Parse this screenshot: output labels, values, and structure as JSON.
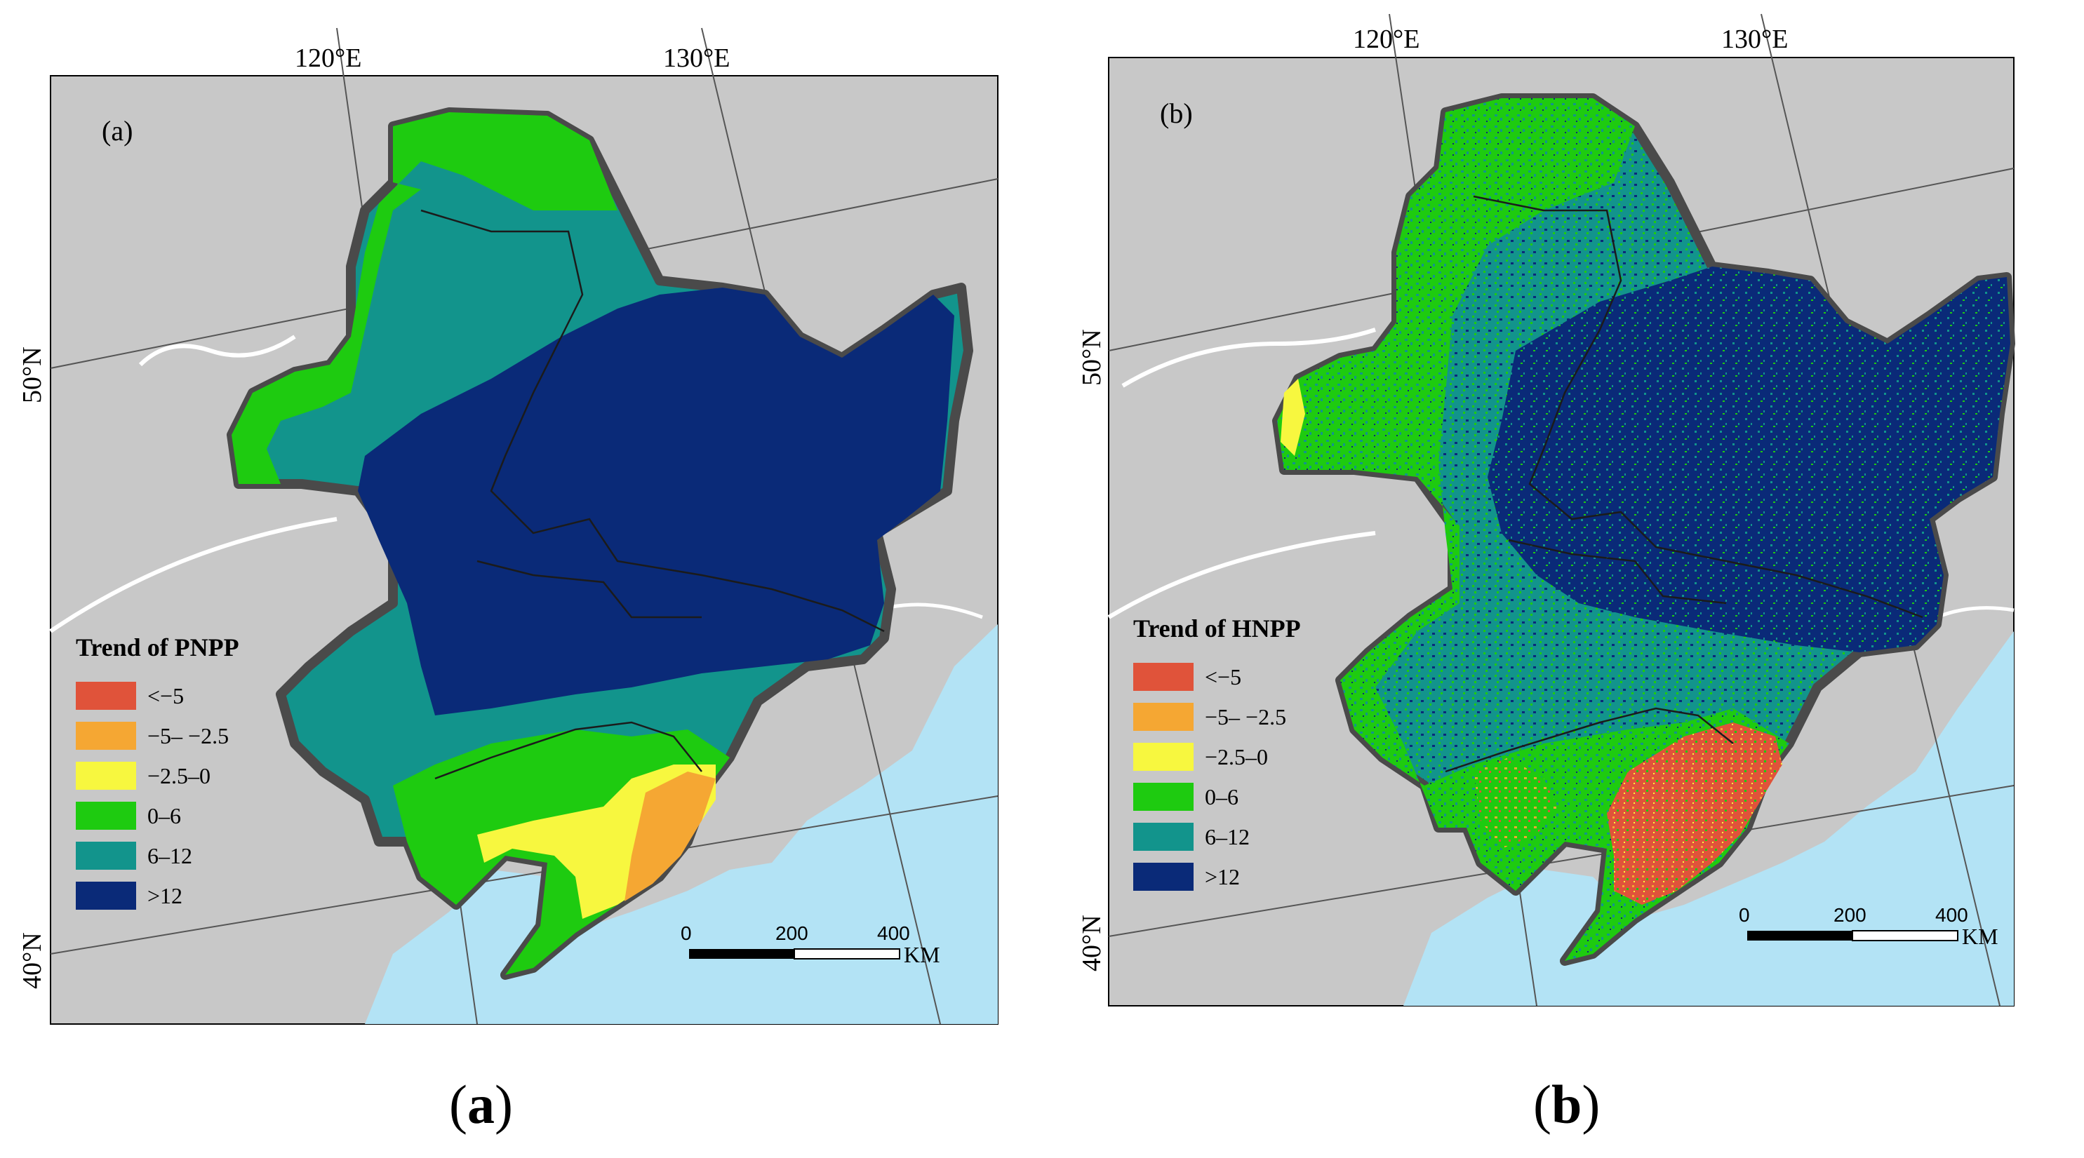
{
  "figure": {
    "panels": [
      {
        "id": "a",
        "inner_label": "(a)",
        "caption_open": "(",
        "caption_letter": "a",
        "caption_close": ")",
        "lon_labels": [
          "120°E",
          "130°E"
        ],
        "lat_labels": [
          "50°N",
          "40°N"
        ],
        "legend": {
          "title": "Trend of PNPP",
          "items": [
            {
              "label": "<−5",
              "color": "#e0533a"
            },
            {
              "label": "−5– −2.5",
              "color": "#f5a733"
            },
            {
              "label": "−2.5–0",
              "color": "#f7f73f"
            },
            {
              "label": "0–6",
              "color": "#1ecb10"
            },
            {
              "label": "6–12",
              "color": "#12948c"
            },
            {
              "label": ">12",
              "color": "#0a2a78"
            }
          ]
        },
        "scale": {
          "ticks": [
            "0",
            "200",
            "400"
          ],
          "unit": "KM"
        }
      },
      {
        "id": "b",
        "inner_label": "(b)",
        "caption_open": "(",
        "caption_letter": "b",
        "caption_close": ")",
        "lon_labels": [
          "120°E",
          "130°E"
        ],
        "lat_labels": [
          "50°N",
          "40°N"
        ],
        "legend": {
          "title": "Trend of HNPP",
          "items": [
            {
              "label": "<−5",
              "color": "#e0533a"
            },
            {
              "label": "−5– −2.5",
              "color": "#f5a733"
            },
            {
              "label": "−2.5–0",
              "color": "#f7f73f"
            },
            {
              "label": "0–6",
              "color": "#1ecb10"
            },
            {
              "label": "6–12",
              "color": "#12948c"
            },
            {
              "label": ">12",
              "color": "#0a2a78"
            }
          ]
        },
        "scale": {
          "ticks": [
            "0",
            "200",
            "400"
          ],
          "unit": "KM"
        }
      }
    ],
    "colors": {
      "map_background": "#c8c8c8",
      "sea": "#b3e3f5",
      "region_border": "#555555",
      "river": "#ffffff"
    }
  }
}
